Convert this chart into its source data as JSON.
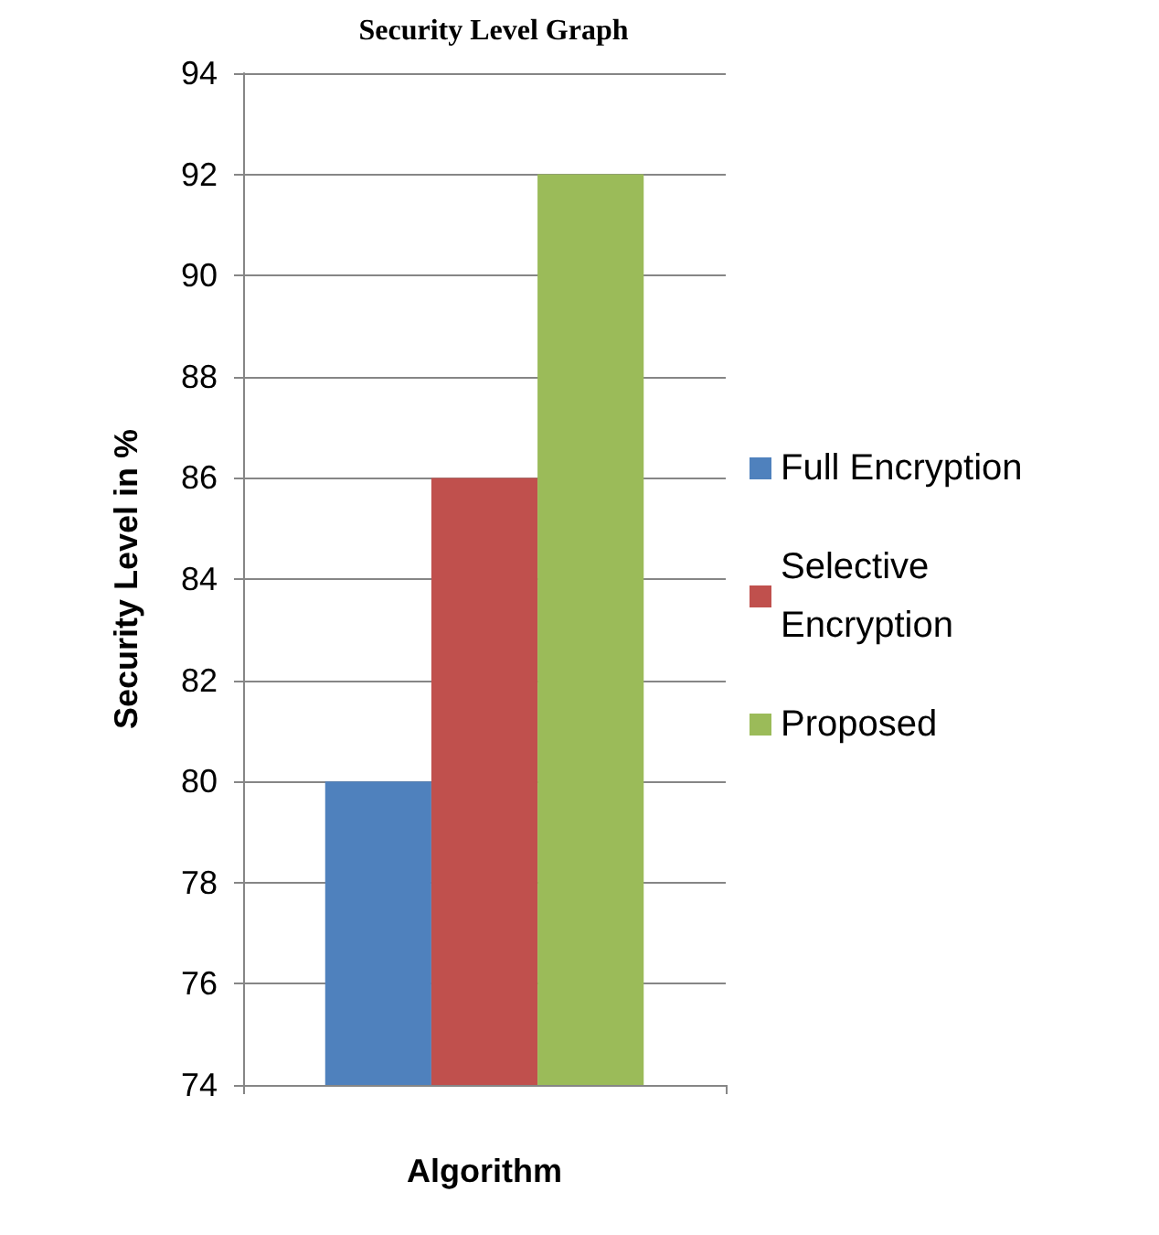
{
  "chart_data": {
    "type": "bar",
    "title": "Security Level Graph",
    "xlabel": "Algorithm",
    "ylabel": "Security Level in %",
    "categories": [
      null
    ],
    "series": [
      {
        "name": "Full Encryption",
        "color": "#4f81bd",
        "values": [
          80
        ]
      },
      {
        "name": "Selective Encryption",
        "color": "#c0504d",
        "values": [
          86
        ]
      },
      {
        "name": "Proposed",
        "color": "#9bbb59",
        "values": [
          92
        ]
      }
    ],
    "ylim": [
      74,
      94
    ],
    "yticks": [
      74,
      76,
      78,
      80,
      82,
      84,
      86,
      88,
      90,
      92,
      94
    ],
    "grid": "y",
    "legend": "right"
  }
}
